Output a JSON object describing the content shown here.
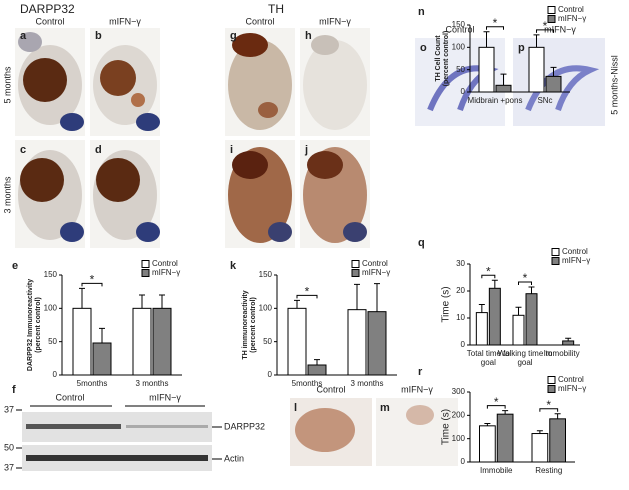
{
  "headers": {
    "darpp32": "DARPP32",
    "th": "TH"
  },
  "panel_labels": [
    "a",
    "b",
    "c",
    "d",
    "e",
    "f",
    "g",
    "h",
    "i",
    "j",
    "k",
    "l",
    "m",
    "n",
    "o",
    "p",
    "q",
    "r"
  ],
  "column_labels": [
    "Control",
    "mIFN−γ",
    "Control",
    "mIFN−γ",
    "Control",
    "mIFN−γ"
  ],
  "row_labels": [
    "5 months",
    "3 months"
  ],
  "nissl_label": "5 months-Nissl",
  "blot": {
    "groups": [
      "Control",
      "mIFN−γ"
    ],
    "markers": [
      "37",
      "50",
      "37"
    ],
    "bands": [
      "DARPP32",
      "Actin"
    ]
  },
  "ihc_labels": [
    "Control",
    "mIFN−γ"
  ],
  "chart_data": [
    {
      "type": "bar",
      "ylabel": "DARPP32 Immunoreactivity",
      "ylabel2": "(percent control)",
      "categories": [
        "5months",
        "3 months"
      ],
      "series": [
        {
          "name": "Control",
          "color": "#ffffff",
          "values": [
            100,
            100
          ],
          "errors": [
            30,
            20
          ]
        },
        {
          "name": "mIFN−γ",
          "color": "#808080",
          "values": [
            48,
            100
          ],
          "errors": [
            22,
            20
          ]
        }
      ],
      "ylim": [
        0,
        150
      ],
      "yticks": [
        0,
        50,
        100,
        150
      ],
      "annotations": [
        "*"
      ]
    },
    {
      "type": "bar",
      "ylabel": "TH immunoreactivity",
      "ylabel2": "(percent control)",
      "categories": [
        "5months",
        "3 months"
      ],
      "series": [
        {
          "name": "Control",
          "color": "#ffffff",
          "values": [
            100,
            98
          ],
          "errors": [
            12,
            38
          ]
        },
        {
          "name": "mIFN−γ",
          "color": "#808080",
          "values": [
            15,
            95
          ],
          "errors": [
            8,
            42
          ]
        }
      ],
      "ylim": [
        0,
        150
      ],
      "yticks": [
        0,
        50,
        100,
        150
      ],
      "annotations": [
        "*"
      ]
    },
    {
      "type": "bar",
      "ylabel": "TH Cell Count",
      "ylabel2": "(percent control)",
      "categories": [
        "Midbrain +pons",
        "SNc"
      ],
      "series": [
        {
          "name": "Control",
          "color": "#ffffff",
          "values": [
            100,
            100
          ],
          "errors": [
            35,
            28
          ]
        },
        {
          "name": "mIFN−γ",
          "color": "#808080",
          "values": [
            15,
            35
          ],
          "errors": [
            25,
            20
          ]
        }
      ],
      "ylim": [
        0,
        150
      ],
      "yticks": [
        0,
        50,
        100,
        150
      ],
      "annotations": [
        "*",
        "*"
      ]
    },
    {
      "type": "bar",
      "ylabel": "Time (s)",
      "categories": [
        "Total time to goal",
        "Walking time to goal",
        "Immobility"
      ],
      "series": [
        {
          "name": "Control",
          "color": "#ffffff",
          "values": [
            12,
            11,
            0
          ],
          "errors": [
            3,
            3,
            0
          ]
        },
        {
          "name": "mIFN−γ",
          "color": "#808080",
          "values": [
            21,
            19,
            1.5
          ],
          "errors": [
            3,
            2.5,
            1
          ]
        }
      ],
      "ylim": [
        0,
        30
      ],
      "yticks": [
        0,
        10,
        20,
        30
      ],
      "annotations": [
        "*",
        "*"
      ]
    },
    {
      "type": "bar",
      "ylabel": "Time (s)",
      "categories": [
        "Immobile",
        "Resting"
      ],
      "series": [
        {
          "name": "Control",
          "color": "#ffffff",
          "values": [
            155,
            122
          ],
          "errors": [
            10,
            12
          ]
        },
        {
          "name": "mIFN−γ",
          "color": "#808080",
          "values": [
            205,
            185
          ],
          "errors": [
            15,
            22
          ]
        }
      ],
      "ylim": [
        0,
        300
      ],
      "yticks": [
        0,
        100,
        200,
        300
      ],
      "annotations": [
        "*",
        "*"
      ]
    }
  ]
}
